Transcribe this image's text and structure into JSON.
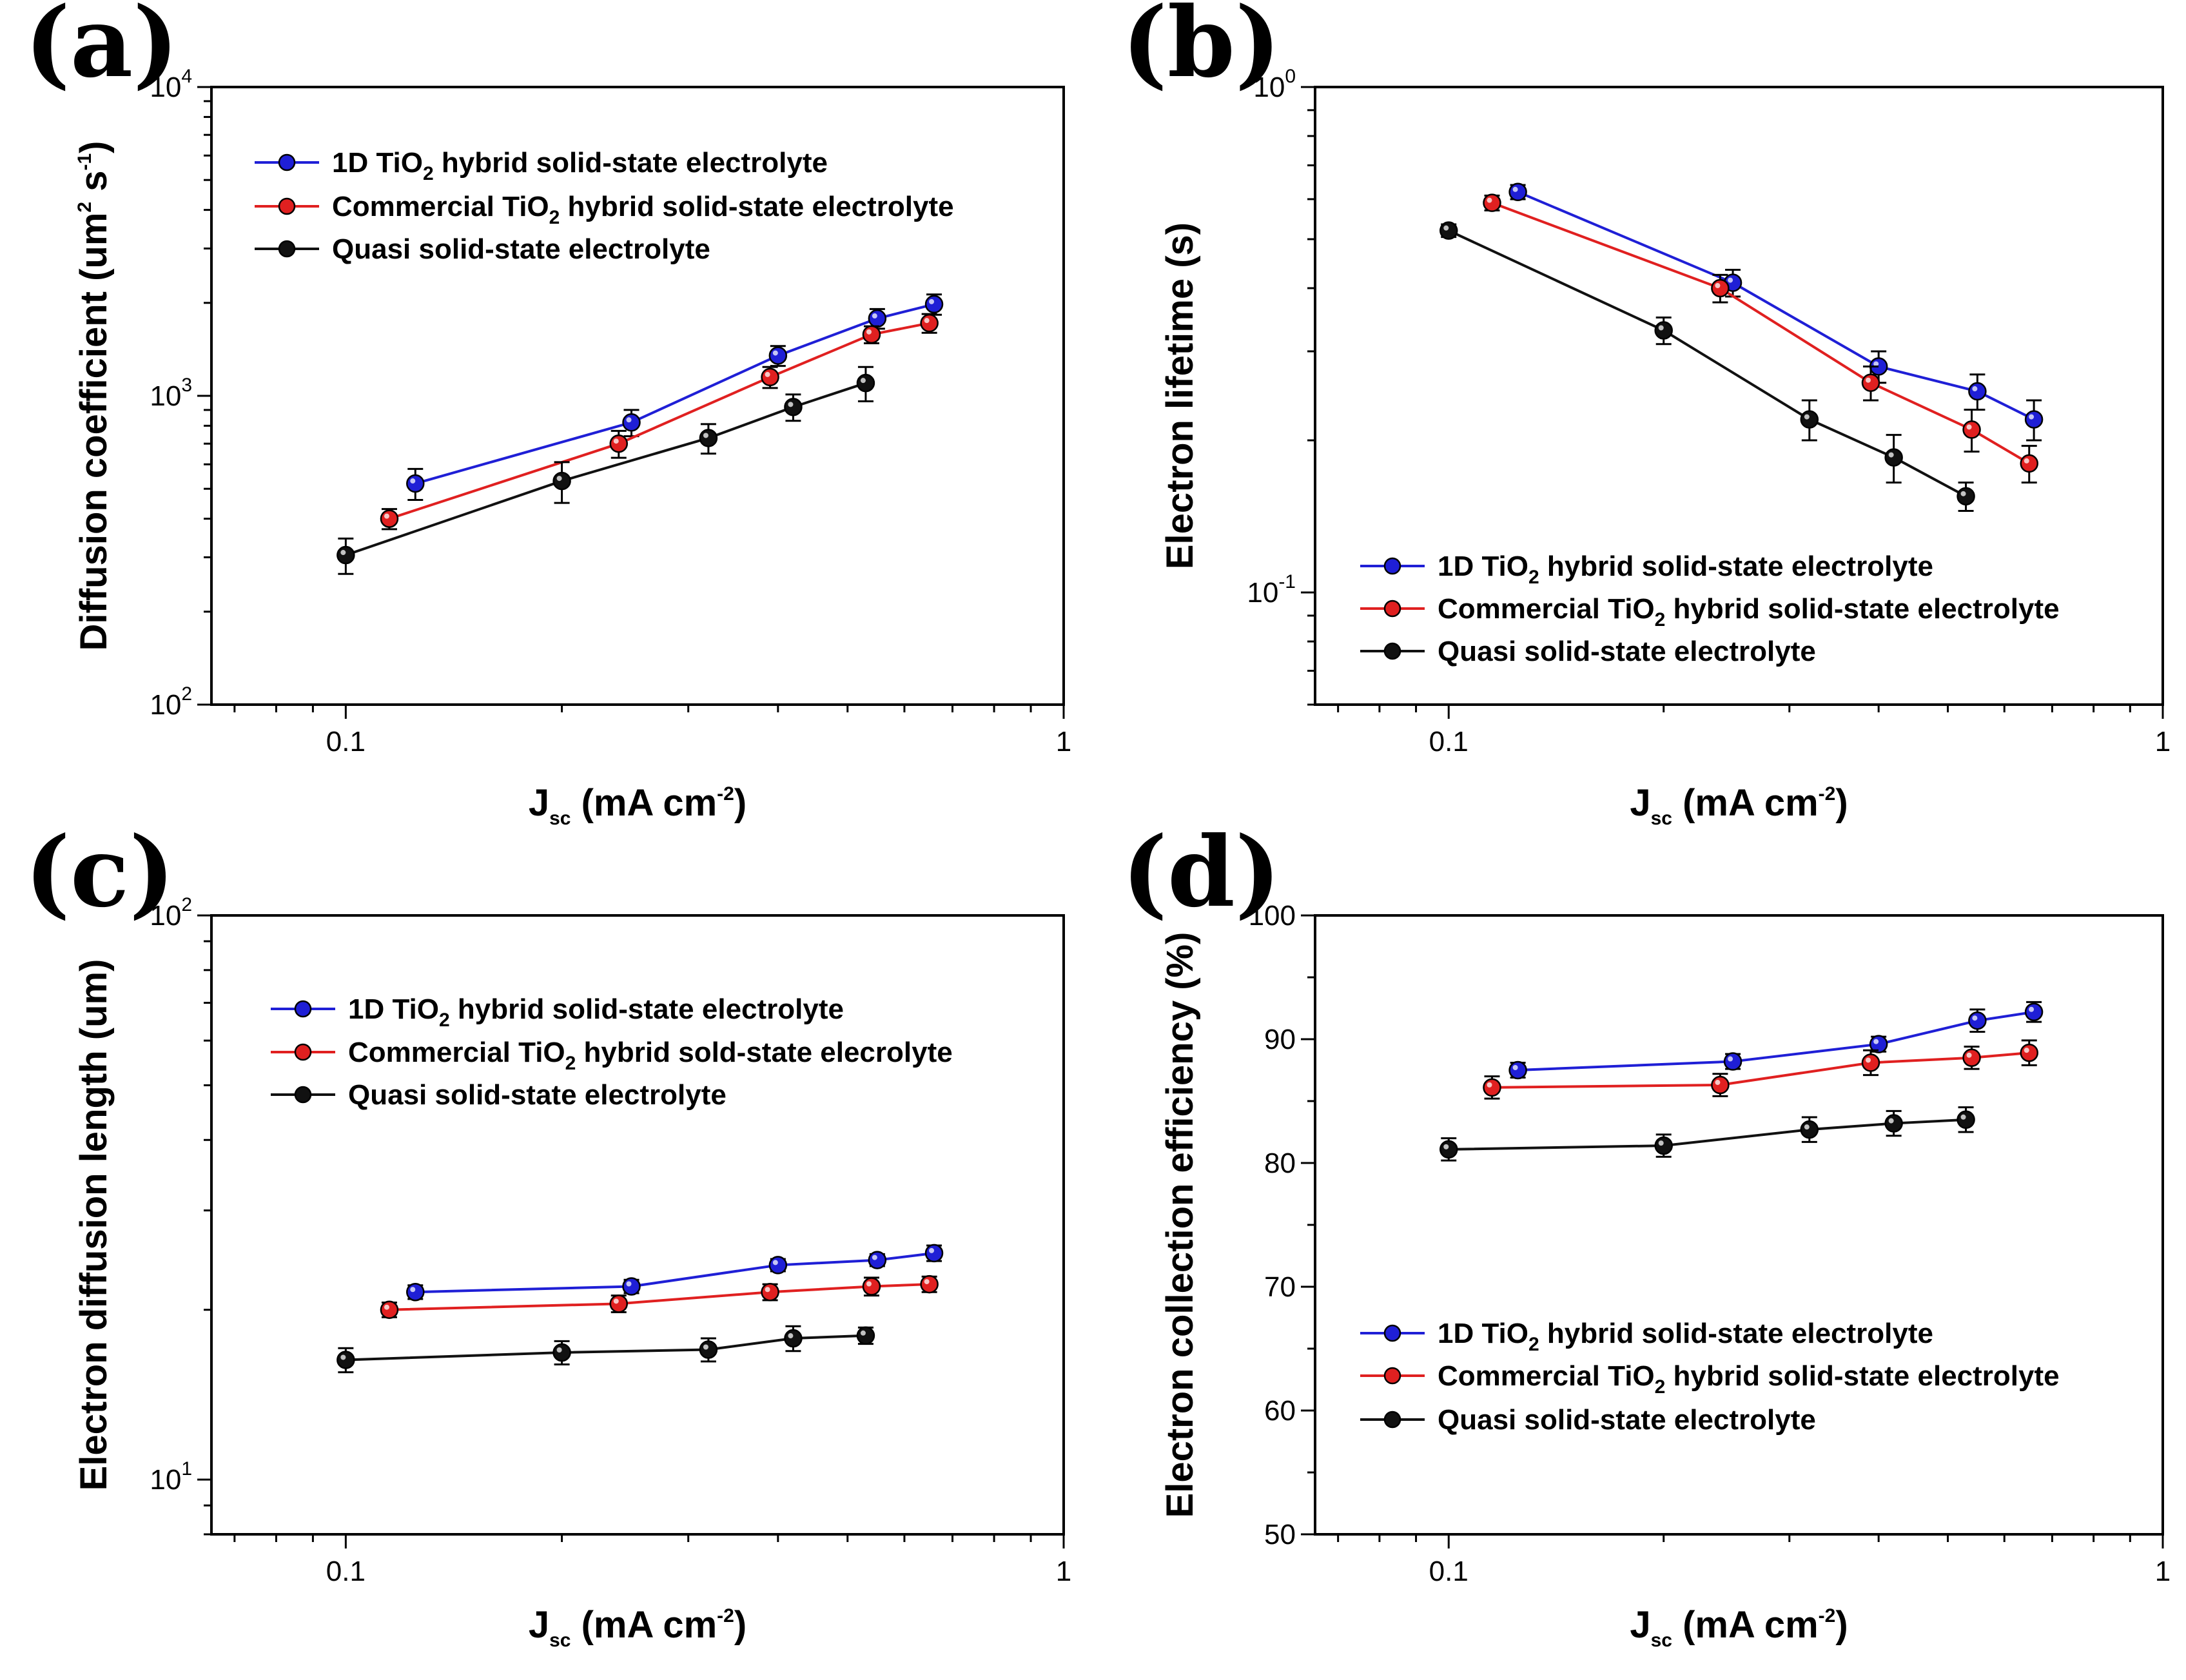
{
  "figure": {
    "series_colors": {
      "blue": "#1f1fd6",
      "red": "#e02020",
      "black": "#111111"
    }
  },
  "chart_data": [
    {
      "type": "line",
      "panel": "(a)",
      "xlabel": "J",
      "xlabel_sub": "sc",
      "xlabel_units": " (mA cm",
      "xlabel_sup": "-2",
      "xlabel_close": ")",
      "ylabel": "Diffusion coefficient (um",
      "ylabel_sup1": "2",
      "ylabel_mid": " s",
      "ylabel_sup2": "-1",
      "ylabel_close": ")",
      "xscale": "log",
      "yscale": "log",
      "xlim": [
        0.065,
        1
      ],
      "ylim": [
        100,
        10000
      ],
      "xticks": [
        {
          "v": 0.1,
          "label": "0.1"
        },
        {
          "v": 1,
          "label": "1"
        }
      ],
      "yticks": [
        {
          "v": 100,
          "base": "10",
          "exp": "2"
        },
        {
          "v": 1000,
          "base": "10",
          "exp": "3"
        },
        {
          "v": 10000,
          "base": "10",
          "exp": "4"
        }
      ],
      "legend_pos": "top-left",
      "series": [
        {
          "color": "blue",
          "legend": {
            "pre": "1D TiO",
            "sub": "2",
            "post": " hybrid solid-state electrolyte"
          },
          "x": [
            0.125,
            0.25,
            0.4,
            0.55,
            0.66
          ],
          "y": [
            520,
            820,
            1350,
            1780,
            1980
          ],
          "err": [
            60,
            80,
            100,
            130,
            150
          ]
        },
        {
          "color": "red",
          "legend": {
            "pre": "Commercial TiO",
            "sub": "2",
            "post": " hybrid solid-state electrolyte"
          },
          "x": [
            0.115,
            0.24,
            0.39,
            0.54,
            0.65
          ],
          "y": [
            400,
            700,
            1150,
            1580,
            1720
          ],
          "err": [
            30,
            70,
            90,
            100,
            120
          ]
        },
        {
          "color": "black",
          "legend": {
            "pre": "Quasi solid-state electrolyte",
            "sub": "",
            "post": ""
          },
          "x": [
            0.1,
            0.2,
            0.32,
            0.42,
            0.53
          ],
          "y": [
            305,
            530,
            730,
            920,
            1100
          ],
          "err": [
            40,
            80,
            80,
            90,
            140
          ]
        }
      ]
    },
    {
      "type": "line",
      "panel": "(b)",
      "xlabel": "J",
      "xlabel_sub": "sc",
      "xlabel_units": " (mA cm",
      "xlabel_sup": "-2",
      "xlabel_close": ")",
      "ylabel": "Electron lifetime (s)",
      "xscale": "log",
      "yscale": "log",
      "xlim": [
        0.065,
        1
      ],
      "ylim": [
        0.06,
        1
      ],
      "xticks": [
        {
          "v": 0.1,
          "label": "0.1"
        },
        {
          "v": 1,
          "label": "1"
        }
      ],
      "yticks": [
        {
          "v": 0.1,
          "base": "10",
          "exp": "-1"
        },
        {
          "v": 1,
          "base": "10",
          "exp": "0"
        }
      ],
      "legend_pos": "bottom-left",
      "series": [
        {
          "color": "blue",
          "legend": {
            "pre": "1D TiO",
            "sub": "2",
            "post": " hybrid solid-state electrolyte"
          },
          "x": [
            0.125,
            0.25,
            0.4,
            0.55,
            0.66
          ],
          "y": [
            0.62,
            0.41,
            0.28,
            0.25,
            0.22
          ],
          "err": [
            0.02,
            0.025,
            0.02,
            0.02,
            0.02
          ]
        },
        {
          "color": "red",
          "legend": {
            "pre": "Commercial TiO",
            "sub": "2",
            "post": " hybrid solid-state electrolyte"
          },
          "x": [
            0.115,
            0.24,
            0.39,
            0.54,
            0.65
          ],
          "y": [
            0.59,
            0.4,
            0.26,
            0.21,
            0.18
          ],
          "err": [
            0.02,
            0.025,
            0.02,
            0.02,
            0.015
          ]
        },
        {
          "color": "black",
          "legend": {
            "pre": "Quasi solid-state electrolyte",
            "sub": "",
            "post": ""
          },
          "x": [
            0.1,
            0.2,
            0.32,
            0.42,
            0.53
          ],
          "y": [
            0.52,
            0.33,
            0.22,
            0.185,
            0.155
          ],
          "err": [
            0.015,
            0.02,
            0.02,
            0.02,
            0.01
          ]
        }
      ]
    },
    {
      "type": "line",
      "panel": "(c)",
      "xlabel": "J",
      "xlabel_sub": "sc",
      "xlabel_units": " (mA cm",
      "xlabel_sup": "-2",
      "xlabel_close": ")",
      "ylabel": "Electron diffusion length (um)",
      "xscale": "log",
      "yscale": "log",
      "xlim": [
        0.065,
        1
      ],
      "ylim": [
        8,
        100
      ],
      "xticks": [
        {
          "v": 0.1,
          "label": "0.1"
        },
        {
          "v": 1,
          "label": "1"
        }
      ],
      "yticks": [
        {
          "v": 10,
          "base": "10",
          "exp": "1"
        },
        {
          "v": 100,
          "base": "10",
          "exp": "2"
        }
      ],
      "legend_pos": "top-left",
      "series": [
        {
          "color": "blue",
          "legend": {
            "pre": "1D TiO",
            "sub": "2",
            "post": " hybrid solid-state electrolyte"
          },
          "x": [
            0.125,
            0.25,
            0.4,
            0.55,
            0.66
          ],
          "y": [
            21.5,
            22,
            24,
            24.5,
            25.2
          ],
          "err": [
            0.6,
            0.6,
            0.6,
            0.6,
            0.8
          ]
        },
        {
          "color": "red",
          "legend": {
            "pre": "Commercial TiO",
            "sub": "2",
            "post": " hybrid sold-state elecrolyte"
          },
          "x": [
            0.115,
            0.24,
            0.39,
            0.54,
            0.65
          ],
          "y": [
            20,
            20.5,
            21.5,
            22,
            22.2
          ],
          "err": [
            0.6,
            0.7,
            0.7,
            0.8,
            0.7
          ]
        },
        {
          "color": "black",
          "legend": {
            "pre": "Quasi solid-state electrolyte",
            "sub": "",
            "post": ""
          },
          "x": [
            0.1,
            0.2,
            0.32,
            0.42,
            0.53
          ],
          "y": [
            16.3,
            16.8,
            17,
            17.8,
            18
          ],
          "err": [
            0.8,
            0.8,
            0.8,
            0.9,
            0.6
          ]
        }
      ]
    },
    {
      "type": "line",
      "panel": "(d)",
      "xlabel": "J",
      "xlabel_sub": "sc",
      "xlabel_units": " (mA cm",
      "xlabel_sup": "-2",
      "xlabel_close": ")",
      "ylabel": "Electron collection efficiency (%)",
      "xscale": "log",
      "yscale": "linear",
      "xlim": [
        0.065,
        1
      ],
      "ylim": [
        50,
        100
      ],
      "xticks": [
        {
          "v": 0.1,
          "label": "0.1"
        },
        {
          "v": 1,
          "label": "1"
        }
      ],
      "yticks": [
        {
          "v": 50,
          "label": "50"
        },
        {
          "v": 60,
          "label": "60"
        },
        {
          "v": 70,
          "label": "70"
        },
        {
          "v": 80,
          "label": "80"
        },
        {
          "v": 90,
          "label": "90"
        },
        {
          "v": 100,
          "label": "100"
        }
      ],
      "legend_pos": "bottom-left",
      "series": [
        {
          "color": "blue",
          "legend": {
            "pre": "1D TiO",
            "sub": "2",
            "post": " hybrid solid-state electrolyte"
          },
          "x": [
            0.125,
            0.25,
            0.4,
            0.55,
            0.66
          ],
          "y": [
            87.5,
            88.2,
            89.6,
            91.5,
            92.2
          ],
          "err": [
            0.6,
            0.6,
            0.6,
            0.9,
            0.8
          ]
        },
        {
          "color": "red",
          "legend": {
            "pre": "Commercial TiO",
            "sub": "2",
            "post": " hybrid solid-state electrolyte"
          },
          "x": [
            0.115,
            0.24,
            0.39,
            0.54,
            0.65
          ],
          "y": [
            86.1,
            86.3,
            88.1,
            88.5,
            88.9
          ],
          "err": [
            0.9,
            0.9,
            1.0,
            0.9,
            1.0
          ]
        },
        {
          "color": "black",
          "legend": {
            "pre": "Quasi solid-state electrolyte",
            "sub": "",
            "post": ""
          },
          "x": [
            0.1,
            0.2,
            0.32,
            0.42,
            0.53
          ],
          "y": [
            81.1,
            81.4,
            82.7,
            83.2,
            83.5
          ],
          "err": [
            0.9,
            0.9,
            1.0,
            1.0,
            1.0
          ]
        }
      ]
    }
  ]
}
